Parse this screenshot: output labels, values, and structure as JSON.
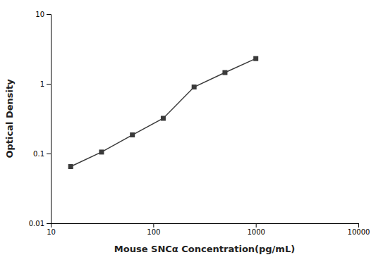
{
  "chart_data": {
    "type": "line",
    "x": [
      15.625,
      31.25,
      62.5,
      125,
      250,
      500,
      1000
    ],
    "values": [
      0.065,
      0.105,
      0.185,
      0.32,
      0.9,
      1.45,
      2.3
    ],
    "xlabel": "Mouse SNCα Concentration(pg/mL)",
    "ylabel": "Optical Density",
    "xlim": [
      10,
      10000
    ],
    "ylim": [
      0.01,
      10
    ],
    "xticks": [
      10,
      100,
      1000,
      10000
    ],
    "yticks": [
      0.01,
      0.1,
      1,
      10
    ],
    "log": true,
    "color": "#3a3a3a",
    "marker": "square"
  }
}
